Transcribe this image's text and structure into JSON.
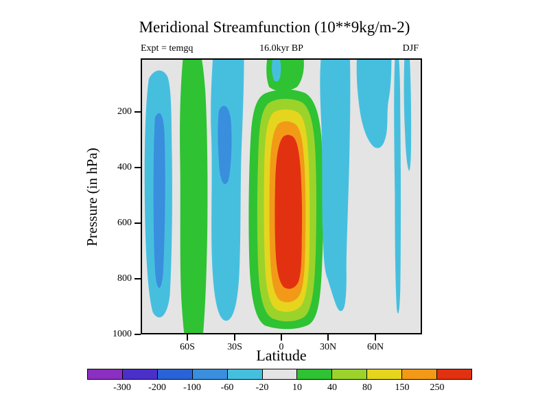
{
  "chart_data": {
    "type": "heatmap",
    "title": "Meridional Streamfunction (10**9kg/m-2)",
    "subtitle_left": "Expt = temgq",
    "subtitle_center": "16.0kyr BP",
    "subtitle_right": "DJF",
    "xlabel": "Latitude",
    "ylabel": "Pressure (in hPa)",
    "x_tick_labels": [
      "60S",
      "30S",
      "0",
      "30N",
      "60N"
    ],
    "y_tick_labels": [
      "200",
      "400",
      "600",
      "800",
      "1000"
    ],
    "x_axis_range": [
      "90S",
      "90N"
    ],
    "y_axis_range_hpa": [
      1000,
      15
    ],
    "grid": false,
    "legend_position": "bottom",
    "contour_levels": [
      -300,
      -200,
      -100,
      -60,
      -20,
      10,
      40,
      80,
      150,
      250
    ],
    "contour_colors": [
      "#8b2fc0",
      "#4a30c8",
      "#2a63d8",
      "#3a8ede",
      "#46bfdf",
      "#e4e4e4",
      "#2fc233",
      "#9bd32b",
      "#e6d51e",
      "#f29a18",
      "#e23110"
    ],
    "background_color": "#e4e4e4",
    "features": [
      {
        "name": "positive-hadley-cell",
        "lat_range": [
          "12S",
          "27N"
        ],
        "pressure_range_hpa": [
          150,
          990
        ],
        "band": "10 to above 250, red core > 250"
      },
      {
        "name": "negative-band-sh-high-lat",
        "lat_range": [
          "88S",
          "72S"
        ],
        "pressure_range_hpa": [
          100,
          950
        ],
        "band": "-20 to -60"
      },
      {
        "name": "positive-band-sh-midlat",
        "lat_range": [
          "66S",
          "55S"
        ],
        "pressure_range_hpa": [
          15,
          1000
        ],
        "band": "10 to 40"
      },
      {
        "name": "negative-band-sh-ferrel",
        "lat_range": [
          "54S",
          "33S"
        ],
        "pressure_range_hpa": [
          15,
          950
        ],
        "band": "-20 to -100"
      },
      {
        "name": "negative-band-nh-ferrel",
        "lat_range": [
          "28N",
          "42N"
        ],
        "pressure_range_hpa": [
          15,
          950
        ],
        "band": "-20 to -60"
      },
      {
        "name": "negative-patches-nh-upper",
        "lat_range": [
          "48N",
          "78N"
        ],
        "pressure_range_hpa": [
          15,
          400
        ],
        "band": "-20"
      }
    ]
  }
}
